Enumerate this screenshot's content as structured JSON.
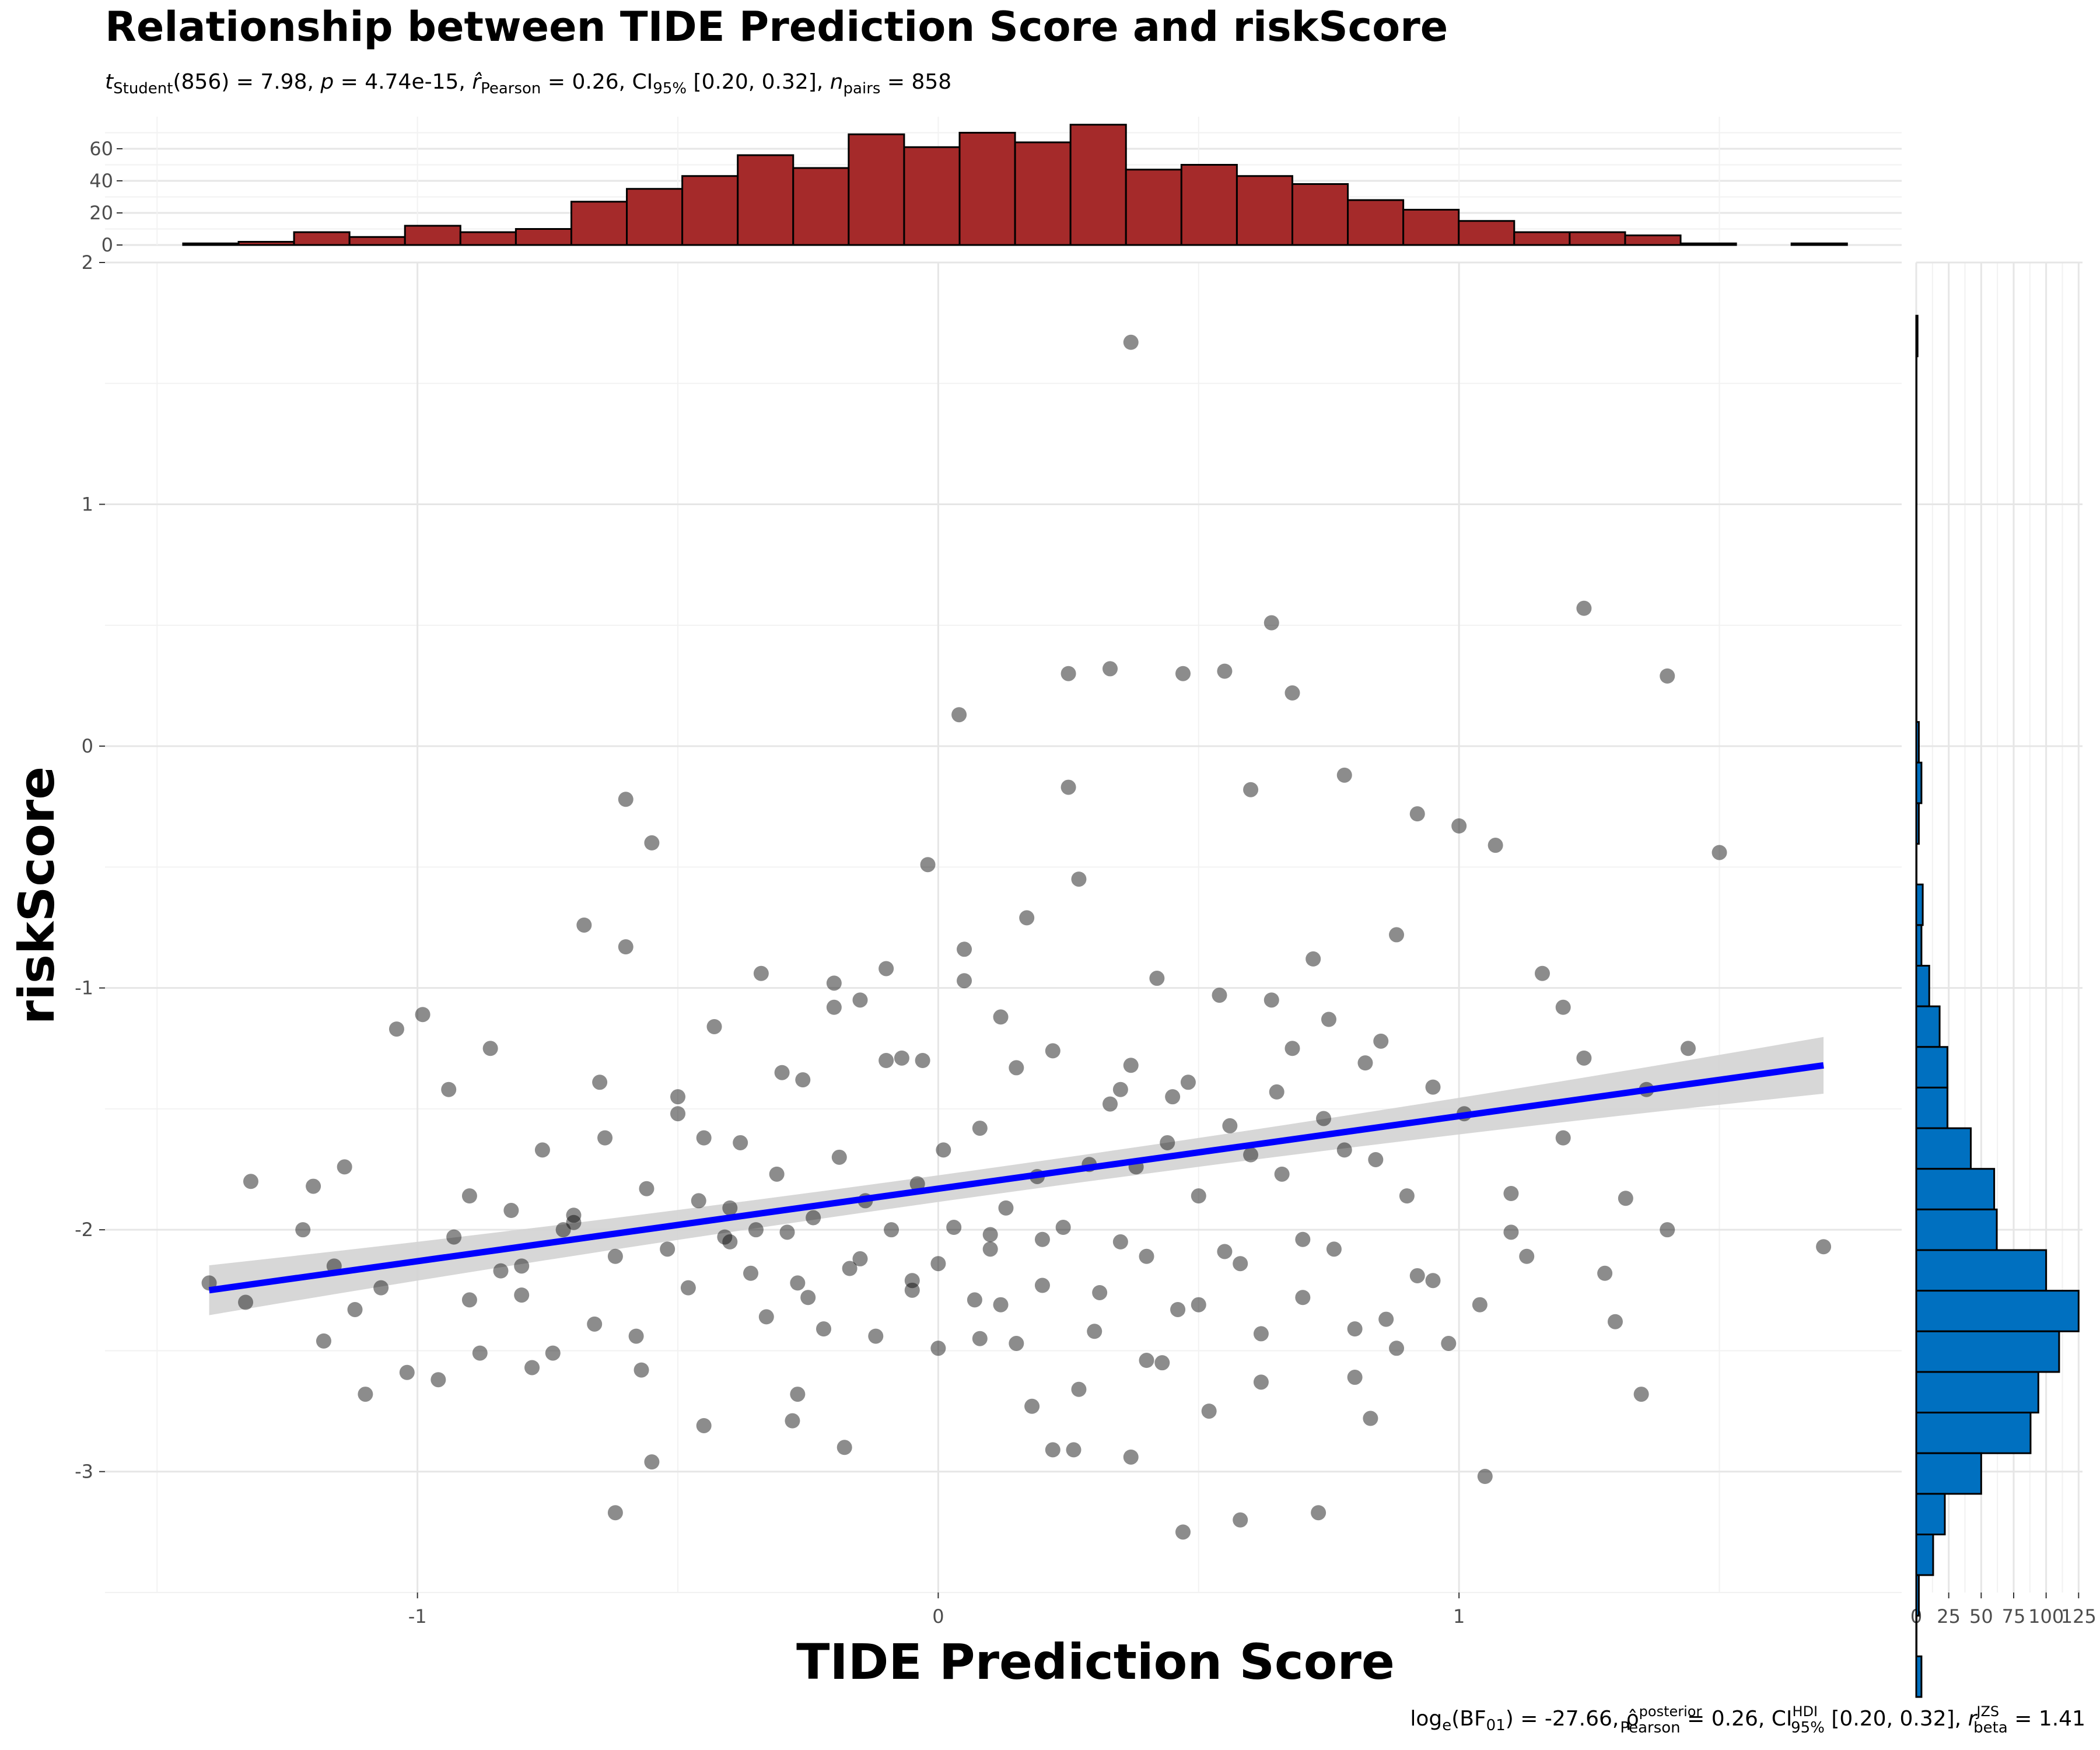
{
  "chart_data": {
    "type": "scatter",
    "title": "Relationship between TIDE Prediction Score and riskScore",
    "subtitle": "t_Student(856) = 7.98, p = 4.74e-15, r̂_Pearson = 0.26, CI_95% [0.20, 0.32], n_pairs = 858",
    "subtitle_parts": {
      "t_label": "t",
      "t_sub": "Student",
      "t_value": "(856) = 7.98, ",
      "p_label": "p",
      "p_value": " = 4.74e-15, ",
      "r_label": "r̂",
      "r_sub": "Pearson",
      "r_value": " = 0.26, CI",
      "ci_sub": "95%",
      "ci_value": " [0.20, 0.32], ",
      "n_label": "n",
      "n_sub": "pairs",
      "n_value": " = 858"
    },
    "caption": "log_e(BF_01) = -27.66, ρ̂_Pearson^posterior = 0.26, CI_95%^HDI [0.20, 0.32], r_beta^JZS = 1.41",
    "caption_parts": {
      "log": "log",
      "log_sub": "e",
      "bf": "(BF",
      "bf_sub": "01",
      "bf_value": ") = -27.66, ",
      "rho": "ρ̂",
      "rho_sup": "posterior",
      "rho_sub": "Pearson",
      "rho_value": " = 0.26, CI",
      "ci_sup": "HDI",
      "ci_sub": "95%",
      "ci_value": " [0.20, 0.32], ",
      "r": "r",
      "r_sup": "JZS",
      "r_sub": "beta",
      "r_value": " = 1.41"
    },
    "xlabel": "TIDE Prediction Score",
    "ylabel": "riskScore",
    "xlim": [
      -1.6,
      1.85
    ],
    "ylim": [
      -3.5,
      2.0
    ],
    "x_ticks": [
      -1,
      0,
      1
    ],
    "x_tick_labels": [
      "-1",
      "0",
      "1"
    ],
    "y_ticks": [
      -3,
      -2,
      -1,
      0,
      1,
      2
    ],
    "y_tick_labels": [
      "-3",
      "-2",
      "-1",
      "0",
      "1",
      "2"
    ],
    "grid": true,
    "regression": {
      "x0": -1.4,
      "y0": -2.25,
      "x1": 1.7,
      "y1": -1.32,
      "color": "#0000ff",
      "band_color": "#d3d3d3"
    },
    "point_color": "#000000",
    "points_x": [
      -1.4,
      -1.33,
      -1.32,
      -1.22,
      -1.2,
      -1.18,
      -1.16,
      -1.14,
      -1.12,
      -1.1,
      -1.07,
      -1.04,
      -1.02,
      -0.99,
      -0.96,
      -0.94,
      -0.93,
      -0.9,
      -0.88,
      -0.86,
      -0.84,
      -0.82,
      -0.8,
      -0.78,
      -0.76,
      -0.74,
      -0.72,
      -0.7,
      -0.68,
      -0.66,
      -0.64,
      -0.62,
      -0.6,
      -0.58,
      -0.56,
      -0.55,
      -0.52,
      -0.5,
      -0.48,
      -0.46,
      -0.45,
      -0.43,
      -0.41,
      -0.4,
      -0.38,
      -0.36,
      -0.34,
      -0.33,
      -0.31,
      -0.29,
      -0.27,
      -0.26,
      -0.24,
      -0.22,
      -0.2,
      -0.19,
      -0.17,
      -0.15,
      -0.14,
      -0.12,
      -0.1,
      -0.09,
      -0.07,
      -0.05,
      -0.04,
      -0.02,
      0.0,
      0.01,
      0.03,
      0.05,
      0.07,
      0.08,
      0.1,
      0.12,
      0.13,
      0.15,
      0.17,
      0.19,
      0.2,
      0.22,
      0.24,
      0.26,
      0.27,
      0.29,
      0.31,
      0.33,
      0.35,
      0.37,
      0.38,
      0.4,
      0.42,
      0.44,
      0.46,
      0.48,
      0.5,
      0.52,
      0.54,
      0.56,
      0.58,
      0.6,
      0.62,
      0.64,
      0.66,
      0.68,
      0.7,
      0.72,
      0.74,
      0.76,
      0.78,
      0.8,
      0.82,
      0.84,
      0.86,
      0.88,
      0.9,
      0.92,
      0.95,
      0.98,
      1.01,
      1.04,
      1.07,
      1.1,
      1.13,
      1.16,
      1.2,
      1.24,
      1.28,
      1.32,
      1.36,
      1.4,
      1.44,
      1.5,
      1.7,
      -0.27,
      -0.03,
      0.04,
      0.25,
      0.47,
      0.55,
      0.64,
      0.68,
      1.4,
      1.24,
      0.33,
      0.37,
      0.25,
      0.6,
      0.78,
      0.92,
      1.0,
      -0.6,
      -0.55,
      -0.45,
      -0.3,
      -0.2,
      -0.1,
      0.05,
      0.15,
      0.35,
      0.45,
      0.65,
      0.75,
      0.85,
      1.2,
      -0.65,
      -0.5,
      -0.35,
      -0.15,
      0.1,
      0.2,
      0.4,
      0.55,
      0.7,
      0.95,
      1.1,
      -0.8,
      -0.7,
      -0.25,
      0.0,
      0.3,
      0.5,
      0.8,
      1.3,
      -0.9,
      -0.4,
      -0.05,
      0.12,
      0.27,
      0.43,
      0.62,
      0.88,
      1.35,
      -0.57,
      -0.28,
      0.08,
      0.22,
      0.47,
      0.73,
      -0.62,
      -0.18,
      0.18,
      0.37,
      0.58,
      0.83,
      1.05
    ],
    "points_y": [
      -2.22,
      -2.3,
      -1.8,
      -2.0,
      -1.82,
      -2.46,
      -2.15,
      -1.74,
      -2.33,
      -2.68,
      -2.24,
      -1.17,
      -2.59,
      -1.11,
      -2.62,
      -1.42,
      -2.03,
      -1.86,
      -2.51,
      -1.25,
      -2.17,
      -1.92,
      -2.27,
      -2.57,
      -1.67,
      -2.51,
      -2.0,
      -1.94,
      -0.74,
      -2.39,
      -1.62,
      -2.11,
      -0.83,
      -2.44,
      -1.83,
      -2.96,
      -2.08,
      -1.52,
      -2.24,
      -1.88,
      -2.81,
      -1.16,
      -2.03,
      -1.91,
      -1.64,
      -2.18,
      -0.94,
      -2.36,
      -1.77,
      -2.01,
      -2.68,
      -1.38,
      -1.95,
      -2.41,
      -0.98,
      -1.7,
      -2.16,
      -1.05,
      -1.88,
      -2.44,
      -0.92,
      -2.0,
      -1.29,
      -2.21,
      -1.81,
      -0.49,
      -2.14,
      -1.67,
      -1.99,
      -0.84,
      -2.29,
      -1.58,
      -2.08,
      -1.12,
      -1.91,
      -2.47,
      -0.71,
      -1.78,
      -2.23,
      -1.26,
      -1.99,
      -2.91,
      -0.55,
      -1.73,
      -2.26,
      -1.48,
      -2.05,
      -1.32,
      -1.74,
      -2.54,
      -0.96,
      -1.64,
      -2.33,
      -1.39,
      -1.86,
      -2.75,
      -1.03,
      -1.57,
      -2.14,
      -1.69,
      -2.43,
      -1.05,
      -1.77,
      -1.25,
      -2.28,
      -0.88,
      -1.54,
      -2.08,
      -1.67,
      -2.61,
      -1.31,
      -1.71,
      -2.37,
      -0.78,
      -1.86,
      -2.19,
      -1.41,
      -2.47,
      -1.52,
      -2.31,
      -0.41,
      -1.85,
      -2.11,
      -0.94,
      -1.62,
      -1.29,
      -2.18,
      -1.87,
      -1.42,
      -2.0,
      -1.25,
      -0.44,
      -2.07,
      -2.22,
      -1.3,
      0.13,
      0.3,
      0.3,
      0.31,
      0.51,
      0.22,
      0.29,
      0.57,
      0.32,
      1.67,
      -0.17,
      -0.18,
      -0.12,
      -0.28,
      -0.33,
      -0.22,
      -0.4,
      -1.62,
      -1.35,
      -1.08,
      -1.3,
      -0.97,
      -1.33,
      -1.42,
      -1.45,
      -1.43,
      -1.13,
      -1.22,
      -1.08,
      -1.39,
      -1.45,
      -2.0,
      -2.12,
      -2.02,
      -2.04,
      -2.11,
      -2.09,
      -2.04,
      -2.21,
      -2.01,
      -2.15,
      -1.97,
      -2.28,
      -2.49,
      -2.42,
      -2.31,
      -2.41,
      -2.38,
      -2.29,
      -2.05,
      -2.25,
      -2.31,
      -2.66,
      -2.55,
      -2.63,
      -2.49,
      -2.68,
      -2.58,
      -2.79,
      -2.45,
      -2.91,
      -3.25,
      -3.17,
      -3.17,
      -2.9,
      -2.73,
      -2.94,
      -3.2,
      -2.78,
      -3.02,
      -2.96,
      -2.81,
      -2.96
    ]
  },
  "top_histogram": {
    "fill": "#a52a2a",
    "yticks": [
      0,
      20,
      40,
      60
    ],
    "ytick_labels": [
      "0",
      "20",
      "40",
      "60"
    ],
    "ymax": 80,
    "bin_start": -1.45,
    "bin_width": 0.1065,
    "counts": [
      1,
      2,
      8,
      5,
      12,
      8,
      10,
      27,
      35,
      43,
      56,
      48,
      69,
      61,
      70,
      64,
      75,
      47,
      50,
      43,
      38,
      28,
      22,
      15,
      8,
      8,
      6,
      1,
      0,
      1
    ]
  },
  "right_histogram": {
    "fill": "#0070c0",
    "xticks": [
      0,
      25,
      50,
      75,
      100,
      125
    ],
    "xtick_labels": [
      "0",
      "25",
      "50",
      "75",
      "100",
      "125"
    ],
    "xmax": 128,
    "bin_top": 1.78,
    "bin_width": 0.168,
    "counts": [
      1,
      0,
      0,
      0,
      0,
      0,
      0,
      0,
      0,
      0,
      2,
      4,
      2,
      0,
      5,
      4,
      10,
      18,
      24,
      24,
      42,
      60,
      62,
      100,
      125,
      110,
      94,
      88,
      50,
      22,
      13,
      2,
      0,
      4
    ]
  }
}
